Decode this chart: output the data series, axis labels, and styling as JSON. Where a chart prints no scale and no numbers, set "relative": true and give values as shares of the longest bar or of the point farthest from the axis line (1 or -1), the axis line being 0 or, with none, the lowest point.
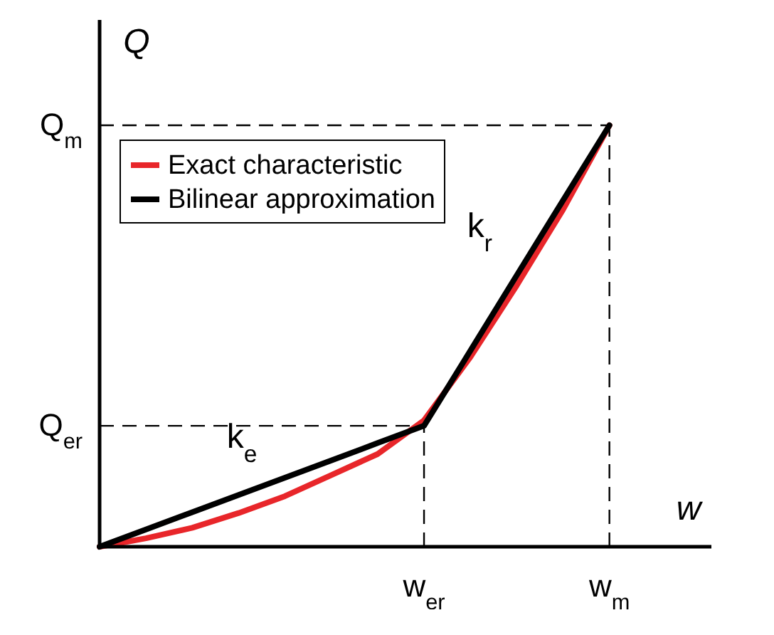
{
  "chart_data": {
    "type": "line",
    "relative": true,
    "xlabel": "w",
    "ylabel": "Q",
    "legend": "top left",
    "categories": [
      null,
      null,
      null,
      null,
      null,
      null,
      null,
      null,
      null,
      null,
      null,
      null
    ],
    "series": [
      {
        "name": "Exact characteristic",
        "color": "#e8262a",
        "values": [
          0,
          0.02,
          0.045,
          0.08,
          0.12,
          0.17,
          0.22,
          0.3,
          0.45,
          0.62,
          0.8,
          1
        ]
      },
      {
        "name": "Bilinear approximation",
        "color": "#000000",
        "values": [
          0,
          0.041,
          0.082,
          0.123,
          0.164,
          0.205,
          0.246,
          0.287,
          0.465,
          0.644,
          0.822,
          1
        ]
      }
    ],
    "ref_lines": [
      {
        "axis": "y",
        "value": 0.287,
        "label": "Q$_{er}$",
        "line_style": "dashed"
      },
      {
        "axis": "y",
        "value": 1,
        "label": "Q$_{m}$",
        "line_style": "dashed"
      }
    ],
    "annotations": [
      "k$_{e}$",
      "k$_{r}$",
      "w$_{er}$",
      "w$_{m}$"
    ]
  }
}
